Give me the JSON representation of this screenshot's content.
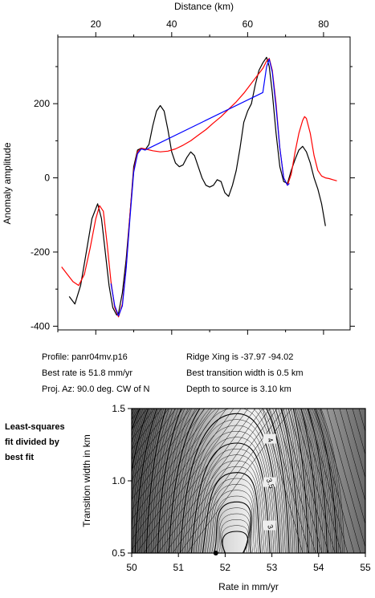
{
  "info": {
    "profile": "Profile: panr04mv.p16",
    "best_rate": "Best rate is 51.8 mm/yr",
    "proj_az": "Proj. Az: 90.0 deg. CW of N",
    "ridge_xing": "Ridge Xing is -37.97 -94.02",
    "best_width": "Best transition width is 0.5 km",
    "depth": "Depth to source is   3.10 km"
  },
  "side_label": [
    "Least-squares",
    "fit divided by",
    "best fit"
  ],
  "chart_data": [
    {
      "type": "line",
      "xlabel": "Distance (km)",
      "ylabel": "Anomaly amplitude",
      "xlim": [
        10,
        87
      ],
      "ylim": [
        -410,
        380
      ],
      "xticks": [
        20,
        40,
        60,
        80
      ],
      "yticks": [
        -400,
        -200,
        0,
        200
      ],
      "grid": false,
      "series": [
        {
          "color": "#000000",
          "x": [
            13.0,
            14.5,
            16.0,
            17.5,
            19.0,
            20.5,
            21.5,
            22.5,
            23.5,
            24.5,
            25.5,
            26.0,
            27.0,
            28.0,
            29.0,
            30.0,
            31.0,
            32.0,
            33.0,
            34.0,
            35.0,
            36.0,
            37.0,
            38.0,
            39.0,
            40.0,
            41.0,
            42.0,
            43.0,
            44.0,
            45.0,
            46.0,
            47.0,
            48.0,
            49.0,
            50.0,
            51.0,
            52.0,
            53.0,
            54.0,
            55.0,
            56.0,
            57.0,
            58.0,
            59.0,
            60.0,
            61.0,
            62.0,
            63.0,
            64.0,
            65.0,
            65.7,
            66.5,
            67.5,
            68.5,
            69.5,
            70.5,
            71.5,
            72.5,
            73.5,
            74.5,
            75.5,
            76.5,
            77.5,
            78.5,
            79.5,
            80.5
          ],
          "y": [
            -320,
            -340,
            -290,
            -200,
            -110,
            -70,
            -110,
            -200,
            -290,
            -350,
            -370,
            -365,
            -310,
            -220,
            -100,
            30,
            75,
            80,
            75,
            90,
            140,
            180,
            195,
            180,
            130,
            70,
            40,
            30,
            35,
            55,
            70,
            60,
            30,
            0,
            -20,
            -25,
            -20,
            -5,
            -10,
            -40,
            -50,
            -20,
            20,
            80,
            150,
            180,
            200,
            250,
            290,
            310,
            325,
            300,
            230,
            120,
            30,
            -10,
            -15,
            20,
            50,
            75,
            85,
            70,
            40,
            0,
            -30,
            -70,
            -130
          ]
        },
        {
          "color": "#ff0000",
          "x": [
            11.0,
            12.5,
            14.0,
            15.5,
            17.0,
            18.5,
            20.0,
            21.0,
            22.0,
            23.0,
            24.0,
            25.0,
            26.0,
            27.0,
            28.0,
            29.0,
            30.0,
            31.0,
            32.0,
            33.0,
            35.0,
            37.0,
            39.0,
            41.0,
            43.0,
            45.0,
            47.0,
            49.0,
            51.0,
            53.0,
            55.0,
            57.0,
            59.0,
            61.0,
            62.5,
            64.0,
            65.0,
            65.7,
            66.5,
            67.5,
            68.5,
            69.5,
            70.5,
            71.5,
            72.5,
            73.5,
            74.5,
            75.0,
            75.5,
            76.5,
            77.5,
            78.5,
            79.5,
            80.5,
            81.5,
            82.5,
            83.5
          ],
          "y": [
            -240,
            -260,
            -280,
            -290,
            -260,
            -190,
            -110,
            -75,
            -90,
            -180,
            -280,
            -350,
            -375,
            -340,
            -240,
            -100,
            20,
            70,
            80,
            78,
            73,
            70,
            72,
            78,
            88,
            100,
            115,
            130,
            148,
            165,
            185,
            205,
            228,
            255,
            275,
            295,
            315,
            322,
            290,
            200,
            80,
            0,
            -20,
            10,
            70,
            120,
            155,
            165,
            160,
            120,
            60,
            20,
            5,
            0,
            -2,
            -5,
            -8
          ]
        },
        {
          "color": "#0000ff",
          "x": [
            24.0,
            25.0,
            26.0,
            27.0,
            28.0,
            29.0,
            30.0,
            31.0,
            32.0,
            33.0,
            64.0,
            65.0,
            65.7,
            66.5,
            67.5,
            68.5,
            69.5,
            70.5,
            71.0
          ],
          "y": [
            -285,
            -345,
            -372,
            -345,
            -245,
            -110,
            15,
            65,
            78,
            75,
            230,
            300,
            320,
            285,
            190,
            80,
            0,
            -20,
            -15
          ]
        }
      ]
    },
    {
      "type": "contour",
      "xlabel": "Rate in mm/yr",
      "ylabel": "Transition width in km",
      "xlim": [
        50,
        55
      ],
      "ylim": [
        0.5,
        1.5
      ],
      "xticks": [
        50,
        51,
        52,
        53,
        54,
        55
      ],
      "yticks": [
        0.5,
        1.0,
        1.5
      ],
      "contour_labels": [
        {
          "text": "4",
          "x": 52.95,
          "y": 1.28
        },
        {
          "text": "3.5",
          "x": 52.95,
          "y": 0.98
        },
        {
          "text": "3",
          "x": 52.95,
          "y": 0.68
        }
      ],
      "best_fit_point": {
        "x": 51.8,
        "y": 0.5
      }
    }
  ]
}
